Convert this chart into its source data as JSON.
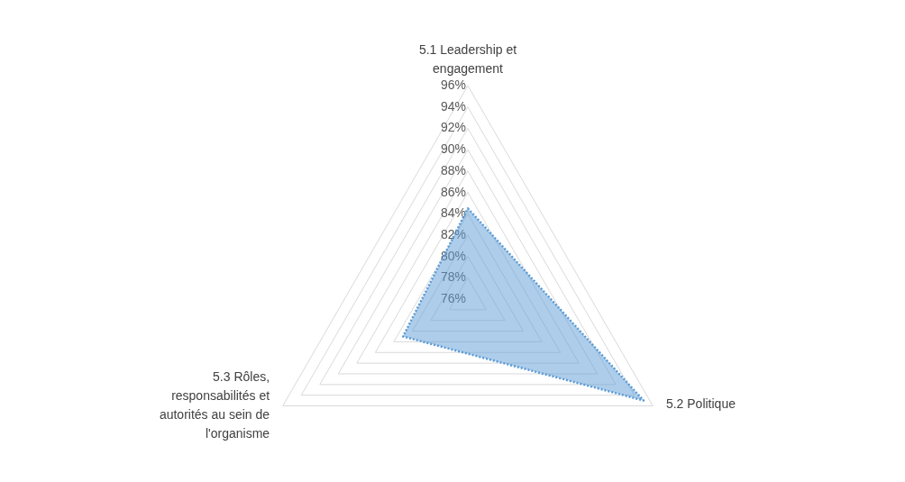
{
  "chart_data": {
    "type": "radar",
    "categories": [
      "5.1 Leadership et engagement",
      "5.2 Politique",
      "5.3 Rôles, responsabilités et autorités au sein de l'organisme"
    ],
    "series": [
      {
        "color": "#5b9bd5",
        "values": [
          84.5,
          95,
          83
        ]
      }
    ],
    "ylim": [
      76,
      96
    ],
    "yticks": [
      {
        "value": 76,
        "label": "76%"
      },
      {
        "value": 78,
        "label": "78%"
      },
      {
        "value": 80,
        "label": "80%"
      },
      {
        "value": 82,
        "label": "82%"
      },
      {
        "value": 84,
        "label": "84%"
      },
      {
        "value": 86,
        "label": "86%"
      },
      {
        "value": 88,
        "label": "88%"
      },
      {
        "value": 90,
        "label": "90%"
      },
      {
        "value": 92,
        "label": "92%"
      },
      {
        "value": 94,
        "label": "94%"
      },
      {
        "value": 96,
        "label": "96%"
      }
    ],
    "grid": true,
    "marker": "none",
    "line_style": "dotted"
  }
}
